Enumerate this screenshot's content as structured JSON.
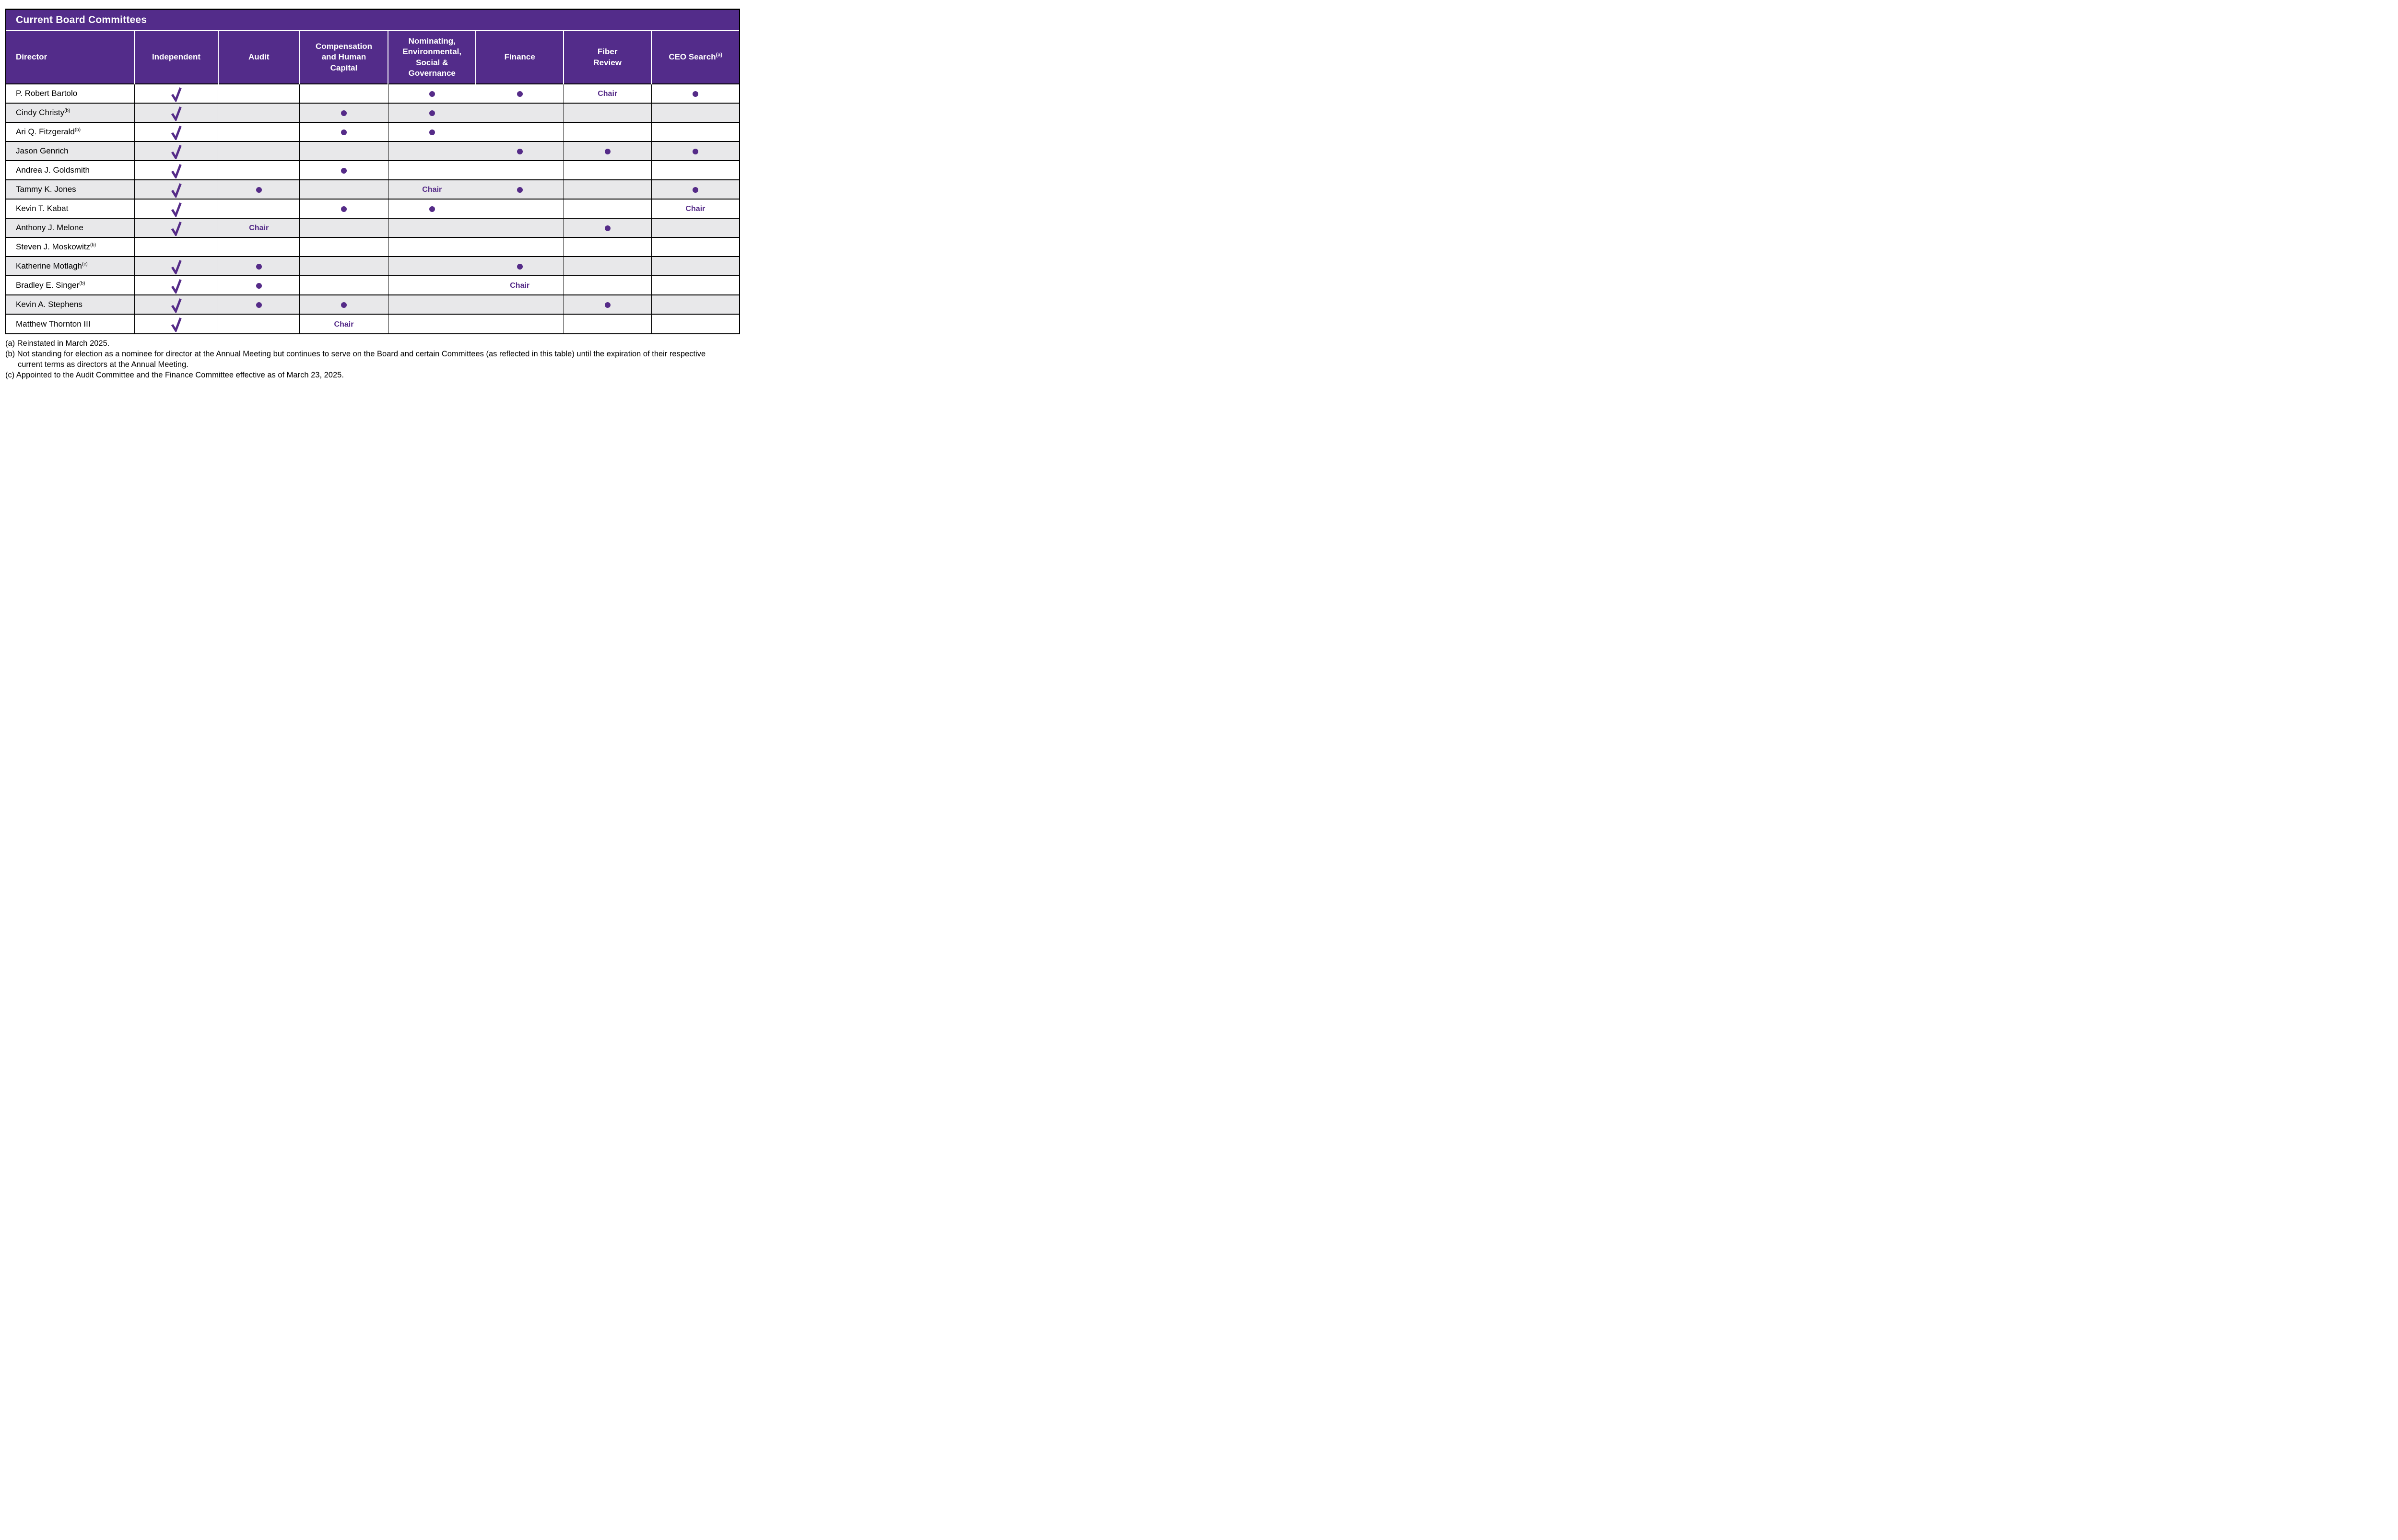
{
  "title": "Current Board Committees",
  "chair_label": "Chair",
  "colors": {
    "header_purple": "#532c8a",
    "accent_purple": "#552b88",
    "row_alt_gray": "#e8e8ea",
    "border_black": "#000000"
  },
  "columns": [
    {
      "key": "director",
      "label_lines": [
        "Director"
      ],
      "sup": ""
    },
    {
      "key": "independent",
      "label_lines": [
        "Independent"
      ],
      "sup": ""
    },
    {
      "key": "audit",
      "label_lines": [
        "Audit"
      ],
      "sup": ""
    },
    {
      "key": "comp",
      "label_lines": [
        "Compensation",
        "and Human",
        "Capital"
      ],
      "sup": ""
    },
    {
      "key": "nesg",
      "label_lines": [
        "Nominating,",
        "Environmental,",
        "Social &",
        "Governance"
      ],
      "sup": ""
    },
    {
      "key": "finance",
      "label_lines": [
        "Finance"
      ],
      "sup": ""
    },
    {
      "key": "fiber",
      "label_lines": [
        "Fiber",
        "Review"
      ],
      "sup": ""
    },
    {
      "key": "ceo",
      "label_lines": [
        "CEO Search"
      ],
      "sup": "(a)"
    }
  ],
  "rows": [
    {
      "director": "P. Robert Bartolo",
      "sup": "",
      "independent": true,
      "audit": "",
      "comp": "",
      "nesg": "member",
      "finance": "member",
      "fiber": "chair",
      "ceo": "member"
    },
    {
      "director": "Cindy Christy",
      "sup": "(b)",
      "independent": true,
      "audit": "",
      "comp": "member",
      "nesg": "member",
      "finance": "",
      "fiber": "",
      "ceo": ""
    },
    {
      "director": "Ari Q. Fitzgerald",
      "sup": "(b)",
      "independent": true,
      "audit": "",
      "comp": "member",
      "nesg": "member",
      "finance": "",
      "fiber": "",
      "ceo": ""
    },
    {
      "director": "Jason Genrich",
      "sup": "",
      "independent": true,
      "audit": "",
      "comp": "",
      "nesg": "",
      "finance": "member",
      "fiber": "member",
      "ceo": "member"
    },
    {
      "director": "Andrea J. Goldsmith",
      "sup": "",
      "independent": true,
      "audit": "",
      "comp": "member",
      "nesg": "",
      "finance": "",
      "fiber": "",
      "ceo": ""
    },
    {
      "director": "Tammy K. Jones",
      "sup": "",
      "independent": true,
      "audit": "member",
      "comp": "",
      "nesg": "chair",
      "finance": "member",
      "fiber": "",
      "ceo": "member"
    },
    {
      "director": "Kevin T. Kabat",
      "sup": "",
      "independent": true,
      "audit": "",
      "comp": "member",
      "nesg": "member",
      "finance": "",
      "fiber": "",
      "ceo": "chair"
    },
    {
      "director": "Anthony J. Melone",
      "sup": "",
      "independent": true,
      "audit": "chair",
      "comp": "",
      "nesg": "",
      "finance": "",
      "fiber": "member",
      "ceo": ""
    },
    {
      "director": "Steven J. Moskowitz",
      "sup": "(b)",
      "independent": false,
      "audit": "",
      "comp": "",
      "nesg": "",
      "finance": "",
      "fiber": "",
      "ceo": ""
    },
    {
      "director": "Katherine Motlagh",
      "sup": "(c)",
      "independent": true,
      "audit": "member",
      "comp": "",
      "nesg": "",
      "finance": "member",
      "fiber": "",
      "ceo": ""
    },
    {
      "director": "Bradley E. Singer",
      "sup": "(b)",
      "independent": true,
      "audit": "member",
      "comp": "",
      "nesg": "",
      "finance": "chair",
      "fiber": "",
      "ceo": ""
    },
    {
      "director": "Kevin A. Stephens",
      "sup": "",
      "independent": true,
      "audit": "member",
      "comp": "member",
      "nesg": "",
      "finance": "",
      "fiber": "member",
      "ceo": ""
    },
    {
      "director": "Matthew Thornton III",
      "sup": "",
      "independent": true,
      "audit": "",
      "comp": "chair",
      "nesg": "",
      "finance": "",
      "fiber": "",
      "ceo": ""
    }
  ],
  "footnotes": [
    "(a) Reinstated in March 2025.",
    "(b) Not standing for election as a nominee for director at the Annual Meeting but continues to serve on the Board and certain Committees (as reflected in this table) until the expiration of their respective",
    "current terms as directors at the Annual Meeting.",
    "(c) Appointed to the Audit Committee and the Finance Committee effective as of March 23, 2025."
  ]
}
